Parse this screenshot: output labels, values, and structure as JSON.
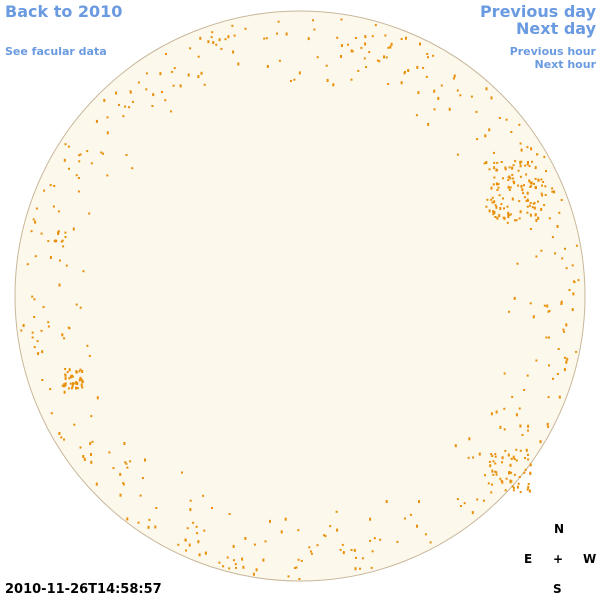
{
  "nav": {
    "back": "Back to 2010",
    "facular": "See facular data",
    "previous_day": "Previous day",
    "next_day": "Next day",
    "previous_hour": "Previous hour",
    "next_hour": "Next hour"
  },
  "timestamp": "2010-11-26T14:58:57",
  "compass": {
    "north": "N",
    "east": "E",
    "center": "+",
    "west": "W",
    "south": "S"
  }
}
